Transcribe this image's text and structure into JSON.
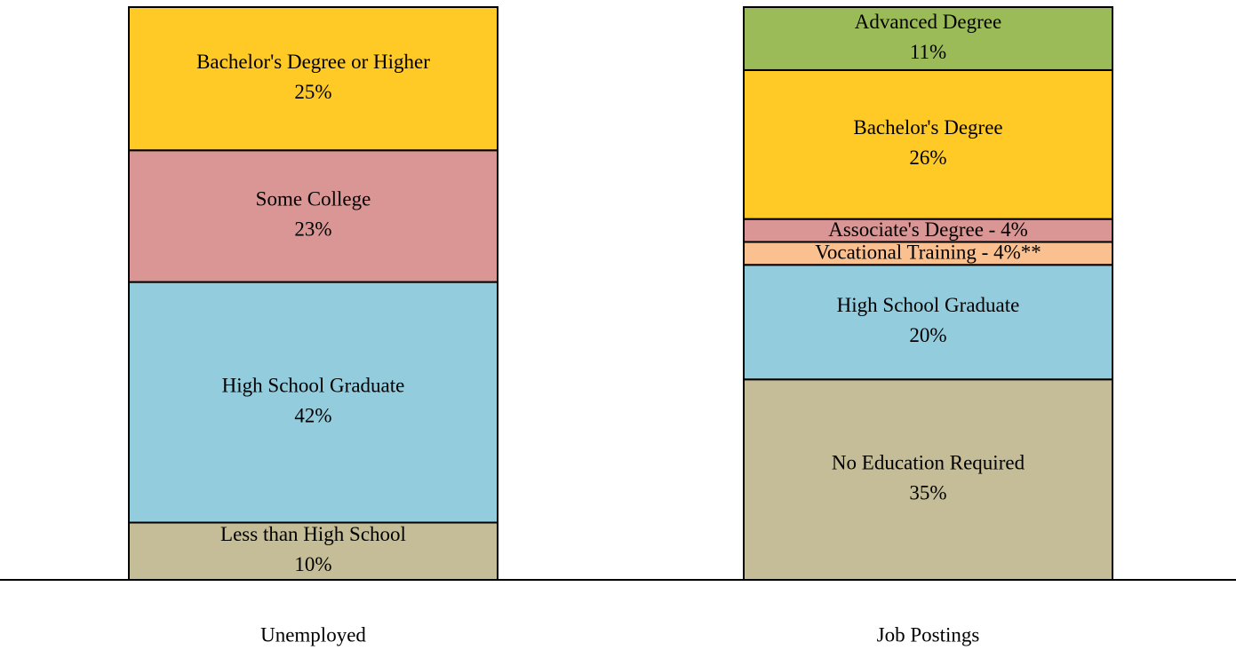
{
  "chart_data": {
    "type": "stacked-bar",
    "ylim": [
      0,
      100
    ],
    "bars": [
      {
        "name": "Unemployed",
        "segments": [
          {
            "name": "Less than High School",
            "value": 10,
            "value_label": "10%",
            "color": "#c4bd97"
          },
          {
            "name": "High School Graduate",
            "value": 42,
            "value_label": "42%",
            "color": "#93cddd"
          },
          {
            "name": "Some College",
            "value": 23,
            "value_label": "23%",
            "color": "#d99694"
          },
          {
            "name": "Bachelor's Degree or Higher",
            "value": 25,
            "value_label": "25%",
            "color": "#ffc926"
          }
        ]
      },
      {
        "name": "Job Postings",
        "segments": [
          {
            "name": "No Education Required",
            "value": 35,
            "value_label": "35%",
            "color": "#c4bd97"
          },
          {
            "name": "High School Graduate",
            "value": 20,
            "value_label": "20%",
            "color": "#93cddd"
          },
          {
            "name": "Vocational Training - 4%**",
            "value": 4,
            "color": "#fac090"
          },
          {
            "name": "Associate's Degree - 4%",
            "value": 4,
            "color": "#d99694"
          },
          {
            "name": "Bachelor's Degree",
            "value": 26,
            "value_label": "26%",
            "color": "#ffc926"
          },
          {
            "name": "Advanced Degree",
            "value": 11,
            "value_label": "11%",
            "color": "#9bbb59"
          }
        ]
      }
    ]
  }
}
